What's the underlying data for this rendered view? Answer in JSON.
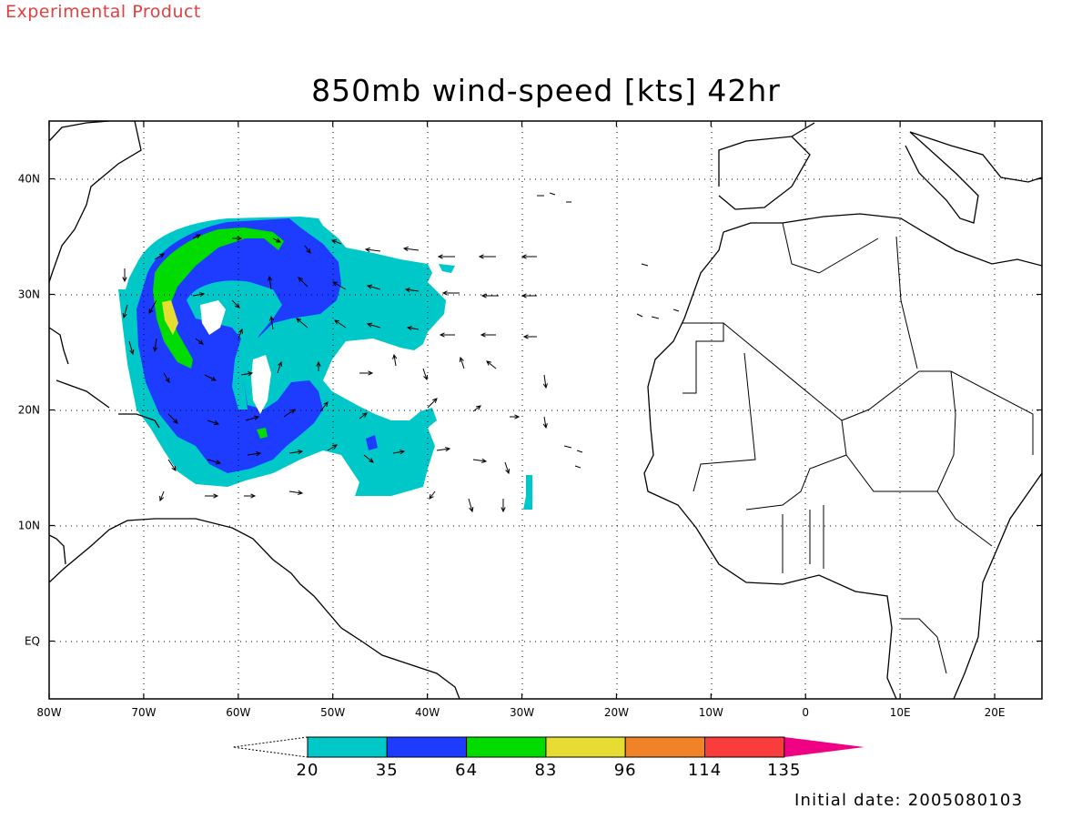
{
  "header": {
    "tag": "Experimental Product",
    "title": "850mb wind-speed [kts] 42hr"
  },
  "map": {
    "lon_range": [
      -80,
      25
    ],
    "lat_range": [
      -5,
      45
    ],
    "x_ticks": [
      {
        "lon": -80,
        "label": "80W"
      },
      {
        "lon": -70,
        "label": "70W"
      },
      {
        "lon": -60,
        "label": "60W"
      },
      {
        "lon": -50,
        "label": "50W"
      },
      {
        "lon": -40,
        "label": "40W"
      },
      {
        "lon": -30,
        "label": "30W"
      },
      {
        "lon": -20,
        "label": "20W"
      },
      {
        "lon": -10,
        "label": "10W"
      },
      {
        "lon": 0,
        "label": "0"
      },
      {
        "lon": 10,
        "label": "10E"
      },
      {
        "lon": 20,
        "label": "20E"
      }
    ],
    "y_ticks": [
      {
        "lat": 40,
        "label": "40N"
      },
      {
        "lat": 30,
        "label": "30N"
      },
      {
        "lat": 20,
        "label": "20N"
      },
      {
        "lat": 10,
        "label": "10N"
      },
      {
        "lat": 0,
        "label": "EQ"
      }
    ],
    "grid": "dotted"
  },
  "colorbar": {
    "levels": [
      "20",
      "35",
      "64",
      "83",
      "96",
      "114",
      "135"
    ],
    "colors": [
      "#00c8c8",
      "#1e3cff",
      "#00dc00",
      "#e6dc32",
      "#f08228",
      "#fa3c3c",
      "#f00082"
    ]
  },
  "footer": {
    "initial_date": "Initial date: 2005080103"
  }
}
